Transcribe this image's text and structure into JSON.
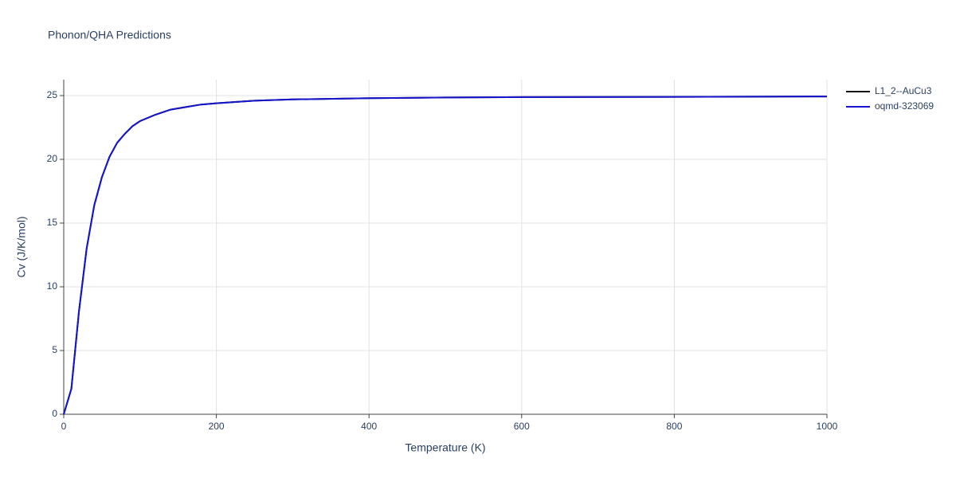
{
  "chart_data": {
    "type": "line",
    "title": "Phonon/QHA Predictions",
    "x_label": "Temperature (K)",
    "y_label": "Cv (J/K/mol)",
    "x": [
      0,
      10,
      20,
      30,
      40,
      50,
      60,
      70,
      80,
      90,
      100,
      120,
      140,
      160,
      180,
      200,
      250,
      300,
      400,
      500,
      600,
      800,
      1000
    ],
    "series": [
      {
        "name": "L1_2--AuCu3",
        "color": "#111111",
        "values": [
          0,
          2.0,
          8.1,
          13.0,
          16.4,
          18.6,
          20.2,
          21.3,
          22.0,
          22.6,
          23.0,
          23.5,
          23.9,
          24.1,
          24.3,
          24.4,
          24.6,
          24.7,
          24.8,
          24.85,
          24.88,
          24.9,
          24.93
        ]
      },
      {
        "name": "oqmd-323069",
        "color": "#1515d0",
        "values": [
          0,
          2.0,
          8.1,
          13.0,
          16.4,
          18.6,
          20.2,
          21.3,
          22.0,
          22.6,
          23.0,
          23.5,
          23.9,
          24.1,
          24.3,
          24.4,
          24.6,
          24.7,
          24.8,
          24.85,
          24.88,
          24.9,
          24.93
        ]
      }
    ],
    "xlim": [
      0,
      1000
    ],
    "xticks": [
      0,
      200,
      400,
      600,
      800,
      1000
    ],
    "ylim": [
      0,
      26.25
    ],
    "yticks": [
      0,
      5,
      10,
      15,
      20,
      25
    ],
    "grid": true,
    "legend": "top-right"
  }
}
